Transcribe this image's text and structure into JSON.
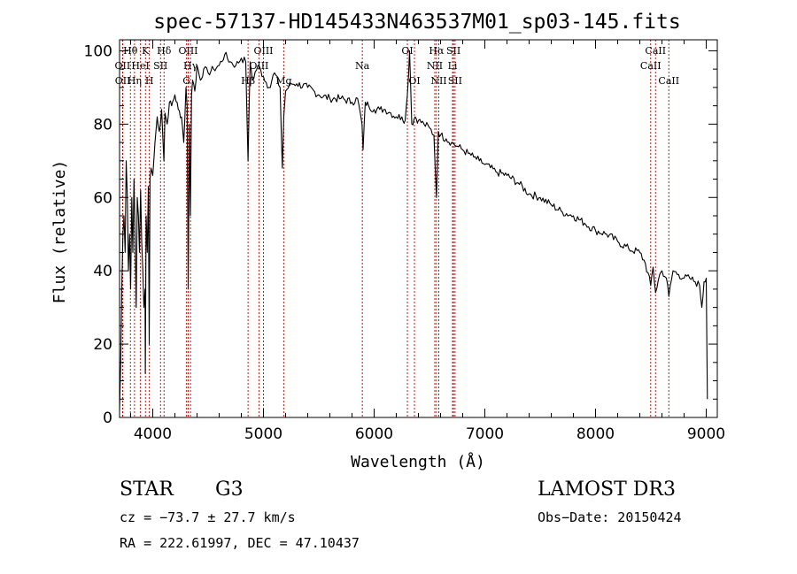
{
  "chart_data": {
    "type": "line",
    "title": "spec-57137-HD145433N463537M01_sp03-145.fits",
    "xlabel": "Wavelength (Å)",
    "ylabel": "Flux (relative)",
    "xlim": [
      3700,
      9100
    ],
    "ylim": [
      0,
      103
    ],
    "xticks": [
      4000,
      5000,
      6000,
      7000,
      8000,
      9000
    ],
    "yticks": [
      0,
      20,
      40,
      60,
      80,
      100
    ],
    "grid": false,
    "series": [
      {
        "name": "flux",
        "x": [
          3700,
          3710,
          3720,
          3730,
          3740,
          3750,
          3760,
          3770,
          3780,
          3790,
          3800,
          3810,
          3820,
          3830,
          3840,
          3850,
          3860,
          3870,
          3880,
          3890,
          3900,
          3910,
          3920,
          3930,
          3933,
          3940,
          3950,
          3960,
          3968,
          3975,
          3985,
          4000,
          4020,
          4040,
          4060,
          4080,
          4101,
          4110,
          4130,
          4150,
          4170,
          4200,
          4230,
          4260,
          4280,
          4300,
          4310,
          4320,
          4330,
          4340,
          4350,
          4360,
          4380,
          4400,
          4430,
          4460,
          4500,
          4550,
          4600,
          4650,
          4700,
          4750,
          4800,
          4840,
          4861,
          4880,
          4900,
          4950,
          5000,
          5050,
          5100,
          5150,
          5170,
          5183,
          5200,
          5250,
          5300,
          5400,
          5500,
          5600,
          5700,
          5800,
          5850,
          5890,
          5900,
          5920,
          5950,
          6000,
          6050,
          6100,
          6150,
          6200,
          6250,
          6280,
          6300,
          6320,
          6340,
          6370,
          6400,
          6450,
          6500,
          6540,
          6563,
          6580,
          6600,
          6650,
          6700,
          6750,
          6800,
          6850,
          6900,
          6950,
          7000,
          7100,
          7200,
          7300,
          7400,
          7500,
          7600,
          7700,
          7800,
          7900,
          8000,
          8100,
          8200,
          8300,
          8400,
          8450,
          8498,
          8520,
          8542,
          8580,
          8600,
          8640,
          8662,
          8700,
          8750,
          8800,
          8850,
          8900,
          8940,
          8960,
          8980,
          9000,
          9010
        ],
        "values": [
          2,
          15,
          35,
          50,
          55,
          45,
          70,
          60,
          40,
          50,
          35,
          60,
          45,
          65,
          50,
          30,
          60,
          55,
          45,
          62,
          48,
          40,
          30,
          35,
          12,
          55,
          45,
          63,
          20,
          65,
          68,
          66,
          75,
          82,
          78,
          84,
          70,
          83,
          80,
          86,
          85,
          88,
          84,
          82,
          75,
          90,
          85,
          35,
          80,
          55,
          88,
          92,
          89,
          96,
          92,
          95,
          94,
          95,
          96,
          99,
          97,
          96,
          98,
          97,
          70,
          97,
          92,
          96,
          93,
          90,
          94,
          90,
          68,
          82,
          89,
          91,
          91,
          90,
          88,
          87,
          87,
          86,
          87,
          80,
          73,
          86,
          85,
          84,
          84,
          84,
          83,
          82,
          82,
          81,
          88,
          100,
          80,
          82,
          81,
          80,
          79,
          77,
          60,
          78,
          77,
          76,
          75,
          74,
          73,
          72,
          71,
          70,
          69,
          67,
          66,
          64,
          61,
          60,
          58,
          56,
          55,
          53,
          51,
          50,
          48,
          46,
          45,
          42,
          36,
          41,
          34,
          39,
          40,
          38,
          33,
          40,
          39,
          38,
          38,
          37,
          36,
          30,
          37,
          38,
          5
        ]
      }
    ],
    "spectral_lines": [
      {
        "name": "Hθ",
        "wavelength": 3798,
        "row": 1
      },
      {
        "name": "OII",
        "wavelength": 3727,
        "row": 2
      },
      {
        "name": "OII",
        "wavelength": 3729,
        "row": 3
      },
      {
        "name": "Hη",
        "wavelength": 3835,
        "row": 3
      },
      {
        "name": "HeI",
        "wavelength": 3889,
        "row": 2
      },
      {
        "name": "K",
        "wavelength": 3934,
        "row": 1
      },
      {
        "name": "H",
        "wavelength": 3969,
        "row": 3
      },
      {
        "name": "SII",
        "wavelength": 4070,
        "row": 2
      },
      {
        "name": "Hδ",
        "wavelength": 4102,
        "row": 1
      },
      {
        "name": "OIII",
        "wavelength": 4320,
        "row": 1
      },
      {
        "name": "Hγ",
        "wavelength": 4341,
        "row": 2
      },
      {
        "name": "G",
        "wavelength": 4305,
        "row": 3
      },
      {
        "name": "Hβ",
        "wavelength": 4861,
        "row": 3
      },
      {
        "name": "OIII",
        "wavelength": 5000,
        "row": 1
      },
      {
        "name": "OIII",
        "wavelength": 4959,
        "row": 2
      },
      {
        "name": "Mg",
        "wavelength": 5183,
        "row": 3
      },
      {
        "name": "Na",
        "wavelength": 5893,
        "row": 2
      },
      {
        "name": "OI",
        "wavelength": 6300,
        "row": 1
      },
      {
        "name": "OI",
        "wavelength": 6364,
        "row": 3
      },
      {
        "name": "Hα",
        "wavelength": 6563,
        "row": 1
      },
      {
        "name": "NII",
        "wavelength": 6548,
        "row": 2
      },
      {
        "name": "NII",
        "wavelength": 6584,
        "row": 3
      },
      {
        "name": "SII",
        "wavelength": 6717,
        "row": 1
      },
      {
        "name": "Li",
        "wavelength": 6708,
        "row": 2
      },
      {
        "name": "SII",
        "wavelength": 6731,
        "row": 3
      },
      {
        "name": "CaII",
        "wavelength": 8542,
        "row": 1
      },
      {
        "name": "CaII",
        "wavelength": 8498,
        "row": 2
      },
      {
        "name": "CaII",
        "wavelength": 8662,
        "row": 3
      }
    ]
  },
  "info": {
    "object_class": "STAR",
    "subclass": "G3",
    "survey": "LAMOST DR3",
    "redshift": "cz = −73.7 ± 27.7 km/s",
    "obs_date": "Obs−Date: 20150424",
    "coords": "RA = 222.61997, DEC =  47.10437"
  },
  "colors": {
    "line": "#000000",
    "marker": "#c00000"
  }
}
